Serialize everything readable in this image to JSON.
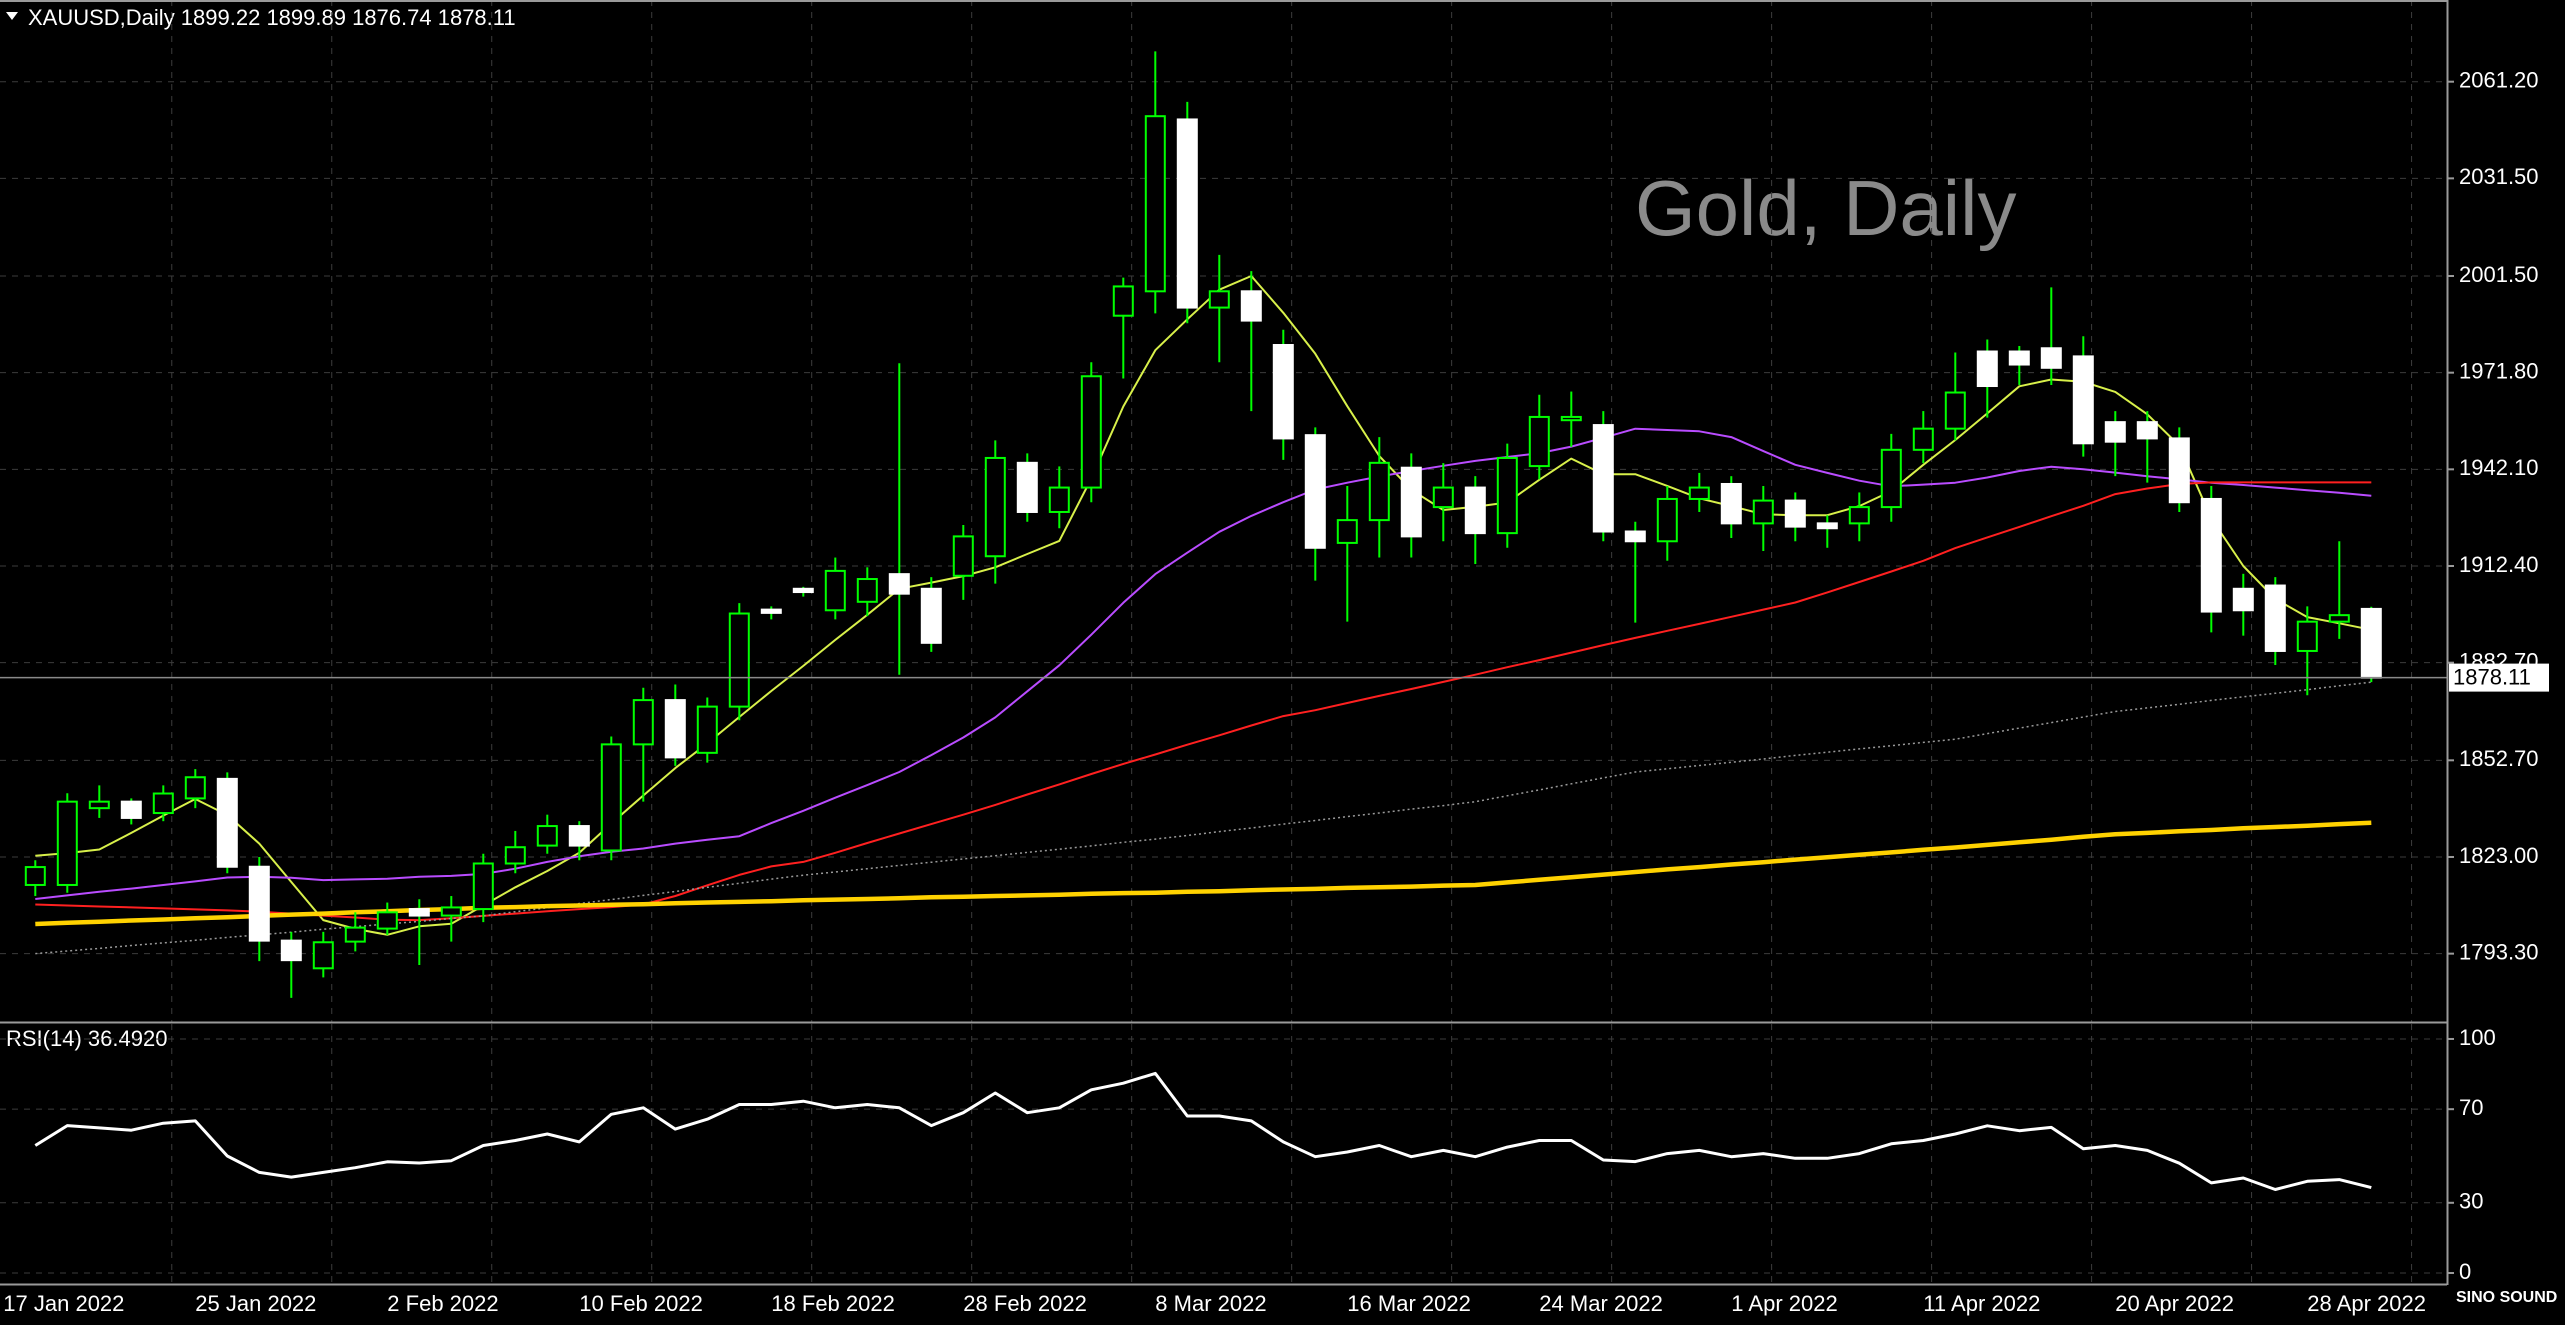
{
  "chart_data": [
    {
      "type": "candlestick",
      "title": "XAUUSD,Daily  1899.22 1899.89 1876.74 1878.11",
      "watermark": "Gold, Daily",
      "categories": [
        "17 Jan 2022",
        null,
        null,
        null,
        null,
        null,
        "25 Jan 2022",
        null,
        null,
        null,
        null,
        null,
        "2 Feb 2022",
        null,
        null,
        null,
        null,
        null,
        "10 Feb 2022",
        null,
        null,
        null,
        null,
        null,
        "18 Feb 2022",
        null,
        null,
        null,
        null,
        null,
        "28 Feb 2022",
        null,
        null,
        null,
        null,
        null,
        "8 Mar 2022",
        null,
        null,
        null,
        null,
        null,
        "16 Mar 2022",
        null,
        null,
        null,
        null,
        null,
        "24 Mar 2022",
        null,
        null,
        null,
        null,
        null,
        "1 Apr 2022",
        null,
        null,
        null,
        null,
        null,
        "11 Apr 2022",
        null,
        null,
        null,
        null,
        null,
        "20 Apr 2022",
        null,
        null,
        null,
        null,
        null,
        "28 Apr 2022",
        null
      ],
      "open": [
        1814.4,
        1814.4,
        1838,
        1840,
        1836.5,
        1841,
        1847,
        1820,
        1797.3,
        1788.8,
        1797,
        1801,
        1807,
        1805,
        1807,
        1821,
        1826.5,
        1832.5,
        1825,
        1857.6,
        1871.2,
        1855,
        1869.2,
        1899,
        1905.4,
        1898.8,
        1901.4,
        1909.9,
        1905.4,
        1909.4,
        1915.4,
        1944.1,
        1929,
        1936.5,
        1989.3,
        1996.8,
        2049.6,
        1991.8,
        1996.8,
        1980.3,
        1952.6,
        1919.5,
        1926.5,
        1942.6,
        1930.5,
        1936.5,
        1922.5,
        1943.1,
        1957.2,
        1955.7,
        1923,
        1920,
        1933,
        1937.6,
        1925.5,
        1932.5,
        1925.5,
        1925.5,
        1930.5,
        1948.1,
        1954.6,
        1978.3,
        1978.3,
        1979.3,
        1976.8,
        1956.6,
        1956.6,
        1951.6,
        1933,
        1905.4,
        1906.4,
        1886.3,
        1895.3,
        1899.22
      ],
      "high": [
        1822,
        1842.6,
        1845,
        1841,
        1845,
        1850,
        1849,
        1823,
        1800,
        1800,
        1806,
        1809,
        1810,
        1811,
        1824,
        1831,
        1836,
        1834,
        1860,
        1875,
        1876,
        1872,
        1901,
        1900,
        1906,
        1915,
        1912,
        1974.7,
        1909,
        1925,
        1951,
        1947,
        1943,
        1975,
        2001,
        2070.5,
        2055,
        2008,
        2003,
        1985,
        1955,
        1937,
        1952,
        1947,
        1944,
        1940,
        1950,
        1965,
        1966,
        1960,
        1926,
        1937,
        1941,
        1940,
        1937,
        1935,
        1928,
        1935,
        1953,
        1960,
        1978,
        1982,
        1980,
        1998,
        1983,
        1960,
        1960,
        1955,
        1937,
        1910,
        1909,
        1900,
        1920,
        1899.89
      ],
      "low": [
        1811,
        1812,
        1835,
        1833,
        1834,
        1838,
        1818,
        1791,
        1779.7,
        1786,
        1794,
        1799,
        1789.8,
        1797,
        1803,
        1818,
        1824,
        1822,
        1822,
        1840,
        1851,
        1852,
        1865,
        1896,
        1903,
        1896,
        1897,
        1879,
        1886,
        1902,
        1907,
        1926,
        1924,
        1932,
        1970,
        1990,
        1987,
        1975,
        1960,
        1945,
        1907.9,
        1895.3,
        1915,
        1915,
        1920,
        1913,
        1918,
        1939,
        1949,
        1920,
        1895,
        1914,
        1929,
        1921,
        1917,
        1920,
        1918,
        1920,
        1926,
        1944,
        1951,
        1958,
        1968,
        1968,
        1946,
        1940,
        1938,
        1929,
        1892,
        1891,
        1882,
        1872.7,
        1890,
        1876.74
      ],
      "close": [
        1819.9,
        1840,
        1840,
        1835,
        1842.5,
        1847.5,
        1820,
        1797.3,
        1791.3,
        1796.8,
        1801.3,
        1806,
        1805,
        1807.5,
        1821,
        1826,
        1832.5,
        1826.5,
        1857.6,
        1871.2,
        1853.6,
        1869.2,
        1897.8,
        1898,
        1904.4,
        1910.9,
        1908.4,
        1903.9,
        1888.8,
        1921.5,
        1945.6,
        1929,
        1936.5,
        1970.7,
        1998.3,
        2050.6,
        1991.8,
        1996.8,
        1987.8,
        1951.6,
        1918,
        1926.5,
        1944.1,
        1921.5,
        1936.5,
        1922.5,
        1945.6,
        1958.2,
        1958.2,
        1923,
        1920,
        1933,
        1936.5,
        1925.5,
        1932.5,
        1924.5,
        1924,
        1930.5,
        1948.1,
        1954.6,
        1965.7,
        1967.7,
        1974.3,
        1973.3,
        1950.1,
        1950.6,
        1951.6,
        1932,
        1898.4,
        1898.8,
        1886.3,
        1895.3,
        1897.3,
        1878.11
      ],
      "up_fill": "#000000",
      "down_fill": "#ffffff",
      "wick_color": "#00ff00",
      "overlays": [
        {
          "color": "#d8f04a",
          "style": "thin",
          "values": [
            1823.4,
            1824.2,
            1825.3,
            1830.4,
            1835.7,
            1840.8,
            1835.9,
            1827.1,
            1815.3,
            1803.6,
            1800.9,
            1799.1,
            1801.7,
            1802.5,
            1808.1,
            1813.7,
            1818.7,
            1824.3,
            1833.3,
            1841.9,
            1850.3,
            1857.9,
            1866.0,
            1874.0,
            1881.7,
            1889.7,
            1897.4,
            1905.4,
            1907.3,
            1909.3,
            1912.0,
            1916.1,
            1920.1,
            1939.3,
            1961.4,
            1978.7,
            1988.2,
            1997.3,
            2001.5,
            1990.2,
            1977.6,
            1961.5,
            1946.2,
            1935.8,
            1929.6,
            1930.6,
            1931.9,
            1938.9,
            1945.4,
            1940.6,
            1940.6,
            1937.0,
            1933.2,
            1930.8,
            1928.3,
            1928.0,
            1928.0,
            1930.8,
            1935.4,
            1943.5,
            1951.1,
            1959.3,
            1967.6,
            1969.7,
            1969.0,
            1965.9,
            1959.0,
            1949.4,
            1927.0,
            1912.4,
            1902.3,
            1896.7,
            1894.8,
            1892.8
          ]
        },
        {
          "color": "#b94cff",
          "style": "thin",
          "values": [
            1810.1,
            1811.2,
            1812.3,
            1813.3,
            1814.4,
            1815.5,
            1816.7,
            1816.9,
            1816.6,
            1815.9,
            1816.1,
            1816.3,
            1816.9,
            1817.2,
            1817.8,
            1819.4,
            1821.5,
            1823.2,
            1824.6,
            1825.6,
            1827.1,
            1828.3,
            1829.4,
            1833.4,
            1837.2,
            1841.2,
            1845.1,
            1849.1,
            1854.3,
            1859.7,
            1865.9,
            1873.9,
            1881.9,
            1891.3,
            1901.1,
            1909.9,
            1916.5,
            1922.9,
            1927.8,
            1932.0,
            1935.9,
            1938.0,
            1939.9,
            1941.6,
            1943.2,
            1944.7,
            1945.9,
            1947.1,
            1949.1,
            1951.8,
            1954.6,
            1954.2,
            1953.8,
            1952.0,
            1947.7,
            1943.5,
            1941.0,
            1938.6,
            1936.9,
            1937.4,
            1938.0,
            1939.6,
            1941.6,
            1942.9,
            1942.1,
            1941.1,
            1940.0,
            1939.0,
            1938.0,
            1937.3,
            1936.5,
            1935.7,
            1934.9,
            1934.0
          ]
        },
        {
          "color": "#ff2020",
          "style": "thin",
          "values": [
            1808.4,
            1808.1,
            1807.8,
            1807.5,
            1807.2,
            1806.9,
            1806.6,
            1806.2,
            1805.6,
            1805.0,
            1804.4,
            1803.7,
            1803.6,
            1804.2,
            1804.9,
            1805.6,
            1806.3,
            1807.0,
            1807.6,
            1808.4,
            1811.0,
            1814.3,
            1817.5,
            1820.1,
            1821.5,
            1824.3,
            1827.3,
            1830.2,
            1833.1,
            1836.0,
            1839.0,
            1842.2,
            1845.3,
            1848.5,
            1851.6,
            1854.5,
            1857.5,
            1860.4,
            1863.4,
            1866.3,
            1868.1,
            1870.3,
            1872.5,
            1874.6,
            1876.8,
            1879.0,
            1881.3,
            1883.5,
            1885.8,
            1888.1,
            1890.3,
            1892.5,
            1894.6,
            1896.8,
            1899.0,
            1901.2,
            1904.3,
            1907.5,
            1910.7,
            1914.0,
            1917.9,
            1921.2,
            1924.4,
            1927.7,
            1930.9,
            1934.5,
            1936.2,
            1937.6,
            1938.1,
            1938.1,
            1938.1,
            1938.1,
            1938.1,
            1938.1
          ]
        },
        {
          "color": "#9a9a9a",
          "style": "dotted",
          "values": [
            1793.3,
            1794.1,
            1794.9,
            1795.8,
            1796.6,
            1797.4,
            1798.3,
            1799.1,
            1799.9,
            1800.8,
            1801.6,
            1802.4,
            1803.2,
            1804.1,
            1804.9,
            1806.2,
            1807.4,
            1808.7,
            1809.9,
            1811.2,
            1812.4,
            1813.7,
            1814.9,
            1816.2,
            1817.4,
            1818.4,
            1819.4,
            1820.4,
            1821.4,
            1822.4,
            1823.4,
            1824.4,
            1825.4,
            1826.4,
            1827.5,
            1828.5,
            1829.6,
            1830.8,
            1831.9,
            1833.1,
            1834.2,
            1835.4,
            1836.5,
            1837.7,
            1838.8,
            1840.0,
            1841.8,
            1843.6,
            1845.5,
            1847.3,
            1849.1,
            1850.1,
            1851.1,
            1852.1,
            1853.1,
            1854.2,
            1855.2,
            1856.2,
            1857.2,
            1858.2,
            1859.2,
            1860.9,
            1862.6,
            1864.3,
            1866.0,
            1867.7,
            1868.8,
            1869.9,
            1871.1,
            1872.2,
            1873.3,
            1874.4,
            1875.6,
            1876.7
          ]
        },
        {
          "color": "#ffd200",
          "style": "thick",
          "values": [
            1802.4,
            1802.8,
            1803.1,
            1803.5,
            1803.8,
            1804.2,
            1804.5,
            1804.9,
            1805.3,
            1805.6,
            1806.0,
            1806.3,
            1806.7,
            1807.0,
            1807.4,
            1807.6,
            1807.9,
            1808.1,
            1808.3,
            1808.5,
            1808.8,
            1809.0,
            1809.2,
            1809.4,
            1809.7,
            1809.9,
            1810.1,
            1810.3,
            1810.6,
            1810.8,
            1811.0,
            1811.2,
            1811.4,
            1811.7,
            1811.9,
            1812.0,
            1812.3,
            1812.5,
            1812.8,
            1813.0,
            1813.2,
            1813.5,
            1813.7,
            1813.9,
            1814.2,
            1814.4,
            1815.2,
            1816.0,
            1816.8,
            1817.6,
            1818.4,
            1819.2,
            1819.9,
            1820.7,
            1821.4,
            1822.2,
            1822.9,
            1823.7,
            1824.4,
            1825.2,
            1825.9,
            1826.7,
            1827.5,
            1828.3,
            1829.2,
            1830.0,
            1830.4,
            1830.9,
            1831.3,
            1831.8,
            1832.2,
            1832.6,
            1833.1,
            1833.5
          ]
        }
      ],
      "ylim": [
        1772.3,
        2086.3
      ],
      "yticks": [
        {
          "value": 1793.3,
          "label": "1793.30"
        },
        {
          "value": 1823,
          "label": "1823.00"
        },
        {
          "value": 1852.7,
          "label": "1852.70"
        },
        {
          "value": 1882.7,
          "label": "1882.70"
        },
        {
          "value": 1912.4,
          "label": "1912.40"
        },
        {
          "value": 1942.1,
          "label": "1942.10"
        },
        {
          "value": 1971.8,
          "label": "1971.80"
        },
        {
          "value": 2001.5,
          "label": "2001.50"
        },
        {
          "value": 2031.5,
          "label": "2031.50"
        },
        {
          "value": 2061.2,
          "label": "2061.20"
        }
      ],
      "last_price": 1878.11,
      "grid": true
    },
    {
      "type": "line",
      "title": "RSI(14) 36.4920",
      "color": "#ffffff",
      "values": [
        54.5,
        63,
        62,
        61,
        64,
        65,
        50,
        43,
        41,
        43,
        45,
        47.5,
        47,
        48,
        54.5,
        56.6,
        59.4,
        56,
        67.8,
        70.6,
        61.5,
        65.7,
        72,
        72,
        73.4,
        70.6,
        72,
        70.6,
        63,
        68.5,
        76.9,
        68.5,
        70.6,
        78.3,
        81.1,
        85.3,
        67.1,
        67.1,
        65,
        56,
        49.7,
        51.7,
        54.5,
        49.7,
        52.4,
        49.7,
        53.8,
        56.6,
        56.6,
        48.3,
        47.6,
        51,
        52.4,
        49.7,
        51,
        49,
        49,
        51,
        55.2,
        56.6,
        59.4,
        62.9,
        60.8,
        62.2,
        53.1,
        54.5,
        52.4,
        46.9,
        38.5,
        40.6,
        35.7,
        39.2,
        39.9,
        36.492
      ],
      "ylim": [
        -4.7,
        106.4
      ],
      "yticks": [
        0,
        30,
        70,
        100
      ],
      "grid": true
    }
  ],
  "logo": "SINO SOUND"
}
